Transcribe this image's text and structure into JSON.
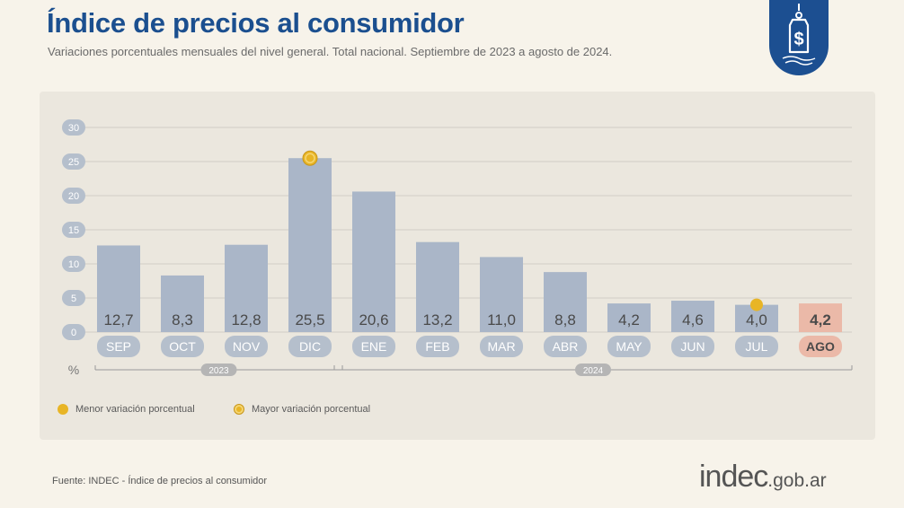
{
  "header": {
    "title": "Índice de precios al consumidor",
    "subtitle": "Variaciones porcentuales mensuales del nivel general. Total nacional. Septiembre de 2023 a agosto de 2024."
  },
  "badge": {
    "icon": "price-tag-dollar-icon"
  },
  "chart_data": {
    "type": "bar",
    "categories": [
      "SEP",
      "OCT",
      "NOV",
      "DIC",
      "ENE",
      "FEB",
      "MAR",
      "ABR",
      "MAY",
      "JUN",
      "JUL",
      "AGO"
    ],
    "values": [
      12.7,
      8.3,
      12.8,
      25.5,
      20.6,
      13.2,
      11.0,
      8.8,
      4.2,
      4.6,
      4.0,
      4.2
    ],
    "value_labels": [
      "12,7",
      "8,3",
      "12,8",
      "25,5",
      "20,6",
      "13,2",
      "11,0",
      "8,8",
      "4,2",
      "4,6",
      "4,0",
      "4,2"
    ],
    "ylabel": "%",
    "ylim": [
      0,
      30
    ],
    "yticks": [
      0,
      5,
      10,
      15,
      20,
      25,
      30
    ],
    "grid": true,
    "year_groups": [
      {
        "label": "2023",
        "categories": [
          "SEP",
          "OCT",
          "NOV",
          "DIC"
        ]
      },
      {
        "label": "2024",
        "categories": [
          "ENE",
          "FEB",
          "MAR",
          "ABR",
          "MAY",
          "JUN",
          "JUL",
          "AGO"
        ]
      }
    ],
    "highlight_category": "AGO",
    "min_marker_category": "JUL",
    "max_marker_category": "DIC",
    "colors": {
      "bar": "#aab6c8",
      "highlight_bar": "#ebb9a8",
      "marker": "#e8b526",
      "axis_pill": "#b5bfcc",
      "grid": "#d2cec6"
    }
  },
  "legend": {
    "min_label": "Menor variación porcentual",
    "max_label": "Mayor variación porcentual"
  },
  "footer": {
    "source": "Fuente: INDEC - Índice de precios al consumidor",
    "brand_main": "indec",
    "brand_suffix": ".gob.ar"
  }
}
